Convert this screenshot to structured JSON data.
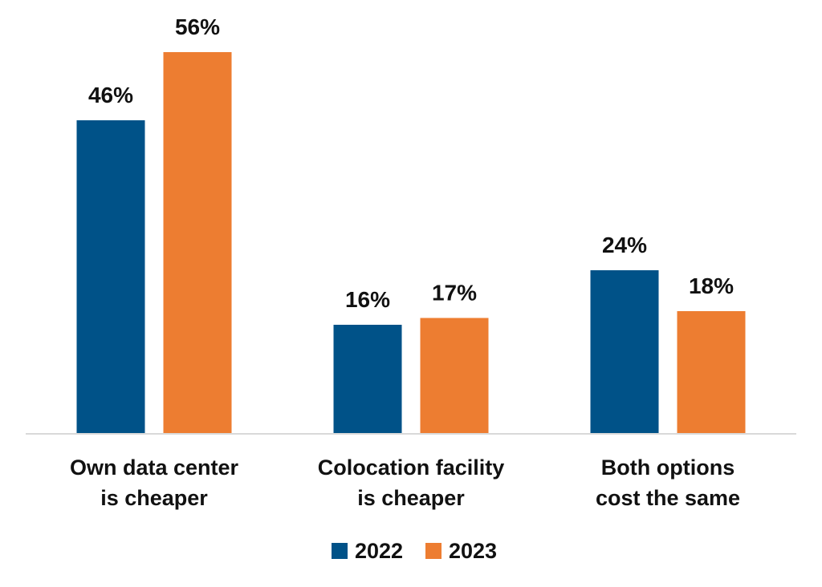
{
  "chart_data": {
    "type": "bar",
    "title": "",
    "xlabel": "",
    "ylabel": "",
    "categories": [
      [
        "Own data center",
        "is cheaper"
      ],
      [
        "Colocation facility",
        "is cheaper"
      ],
      [
        "Both options",
        "cost the same"
      ]
    ],
    "series": [
      {
        "name": "2022",
        "color": "#005288",
        "values": [
          46,
          16,
          24
        ]
      },
      {
        "name": "2023",
        "color": "#ed7d31",
        "values": [
          56,
          17,
          18
        ]
      }
    ],
    "value_suffix": "%",
    "ylim": [
      0,
      62
    ],
    "grid": false,
    "legend": "bottom",
    "data_labels": true
  }
}
